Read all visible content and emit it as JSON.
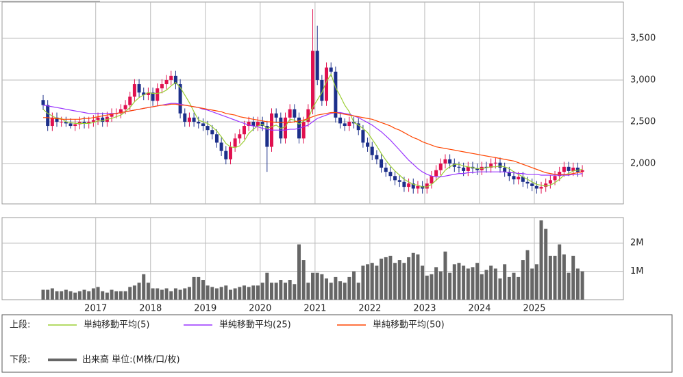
{
  "chart_data": [
    {
      "type": "candlestick",
      "open": [
        2760,
        2700,
        2450,
        2550,
        2500,
        2500,
        2480,
        2450,
        2470,
        2500,
        2480,
        2500,
        2520,
        2550,
        2500,
        2560,
        2600,
        2600,
        2650,
        2700,
        2800,
        2950,
        2850,
        2820,
        2850,
        2750,
        2900,
        2950,
        3000,
        3050,
        2950,
        2600,
        2500,
        2550,
        2500,
        2480,
        2450,
        2400,
        2350,
        2250,
        2150,
        2050,
        2200,
        2300,
        2350,
        2450,
        2500,
        2450,
        2500,
        2450,
        2200,
        2600,
        2550,
        2300,
        2550,
        2650,
        2550,
        2300,
        2500,
        2650,
        3350,
        3000,
        2750,
        3150,
        3100,
        2550,
        2480,
        2450,
        2500,
        2480,
        2400,
        2250,
        2200,
        2100,
        2050,
        1950,
        1900,
        1850,
        1800,
        1780,
        1720,
        1760,
        1700,
        1730,
        1700,
        1760,
        1850,
        1920,
        2000,
        2050,
        2000,
        1960,
        1950,
        1910,
        1960,
        1940,
        1920,
        1960,
        1950,
        2000,
        2010,
        1950,
        1900,
        1850,
        1810,
        1840,
        1780,
        1760,
        1730,
        1700,
        1720,
        1760,
        1800,
        1850,
        1900,
        1960,
        1910,
        1950,
        1900
      ],
      "high": [
        2820,
        2760,
        2610,
        2610,
        2560,
        2560,
        2540,
        2530,
        2560,
        2560,
        2560,
        2580,
        2610,
        2610,
        2620,
        2660,
        2660,
        2710,
        2760,
        2860,
        3010,
        3010,
        2910,
        2910,
        2910,
        2960,
        3010,
        3060,
        3110,
        3110,
        3010,
        2660,
        2610,
        2610,
        2560,
        2540,
        2510,
        2460,
        2410,
        2310,
        2210,
        2260,
        2360,
        2410,
        2510,
        2560,
        2560,
        2560,
        2560,
        2510,
        2660,
        2660,
        2610,
        2610,
        2710,
        2710,
        2610,
        2560,
        2710,
        3850,
        3650,
        3060,
        3210,
        3210,
        3160,
        2610,
        2540,
        2560,
        2560,
        2540,
        2460,
        2310,
        2260,
        2160,
        2110,
        2010,
        1960,
        1910,
        1860,
        1840,
        1820,
        1820,
        1790,
        1790,
        1820,
        1910,
        1980,
        2060,
        2110,
        2110,
        2060,
        2020,
        2010,
        2020,
        2020,
        2000,
        2020,
        2020,
        2060,
        2070,
        2070,
        2010,
        1960,
        1910,
        1900,
        1900,
        1840,
        1820,
        1790,
        1780,
        1820,
        1860,
        1910,
        1960,
        2020,
        2020,
        2010,
        2010,
        1980
      ],
      "low": [
        2640,
        2390,
        2390,
        2440,
        2440,
        2440,
        2420,
        2390,
        2410,
        2420,
        2420,
        2440,
        2460,
        2440,
        2440,
        2500,
        2540,
        2540,
        2590,
        2640,
        2740,
        2790,
        2760,
        2760,
        2690,
        2690,
        2840,
        2890,
        2940,
        2890,
        2540,
        2440,
        2440,
        2440,
        2420,
        2390,
        2340,
        2290,
        2190,
        2090,
        1990,
        1990,
        2140,
        2240,
        2290,
        2390,
        2390,
        2390,
        2390,
        1900,
        2140,
        2490,
        2240,
        2240,
        2490,
        2490,
        2240,
        2240,
        2440,
        2590,
        2940,
        2690,
        2690,
        3040,
        2490,
        2420,
        2390,
        2390,
        2420,
        2340,
        2190,
        2140,
        2040,
        1990,
        1890,
        1840,
        1790,
        1740,
        1720,
        1660,
        1660,
        1640,
        1640,
        1640,
        1640,
        1700,
        1790,
        1860,
        1940,
        1940,
        1900,
        1890,
        1850,
        1850,
        1880,
        1860,
        1860,
        1890,
        1890,
        1940,
        1890,
        1840,
        1790,
        1750,
        1750,
        1720,
        1700,
        1670,
        1640,
        1640,
        1660,
        1700,
        1740,
        1790,
        1840,
        1850,
        1850,
        1840,
        1840
      ],
      "close": [
        2700,
        2450,
        2550,
        2500,
        2500,
        2480,
        2450,
        2470,
        2500,
        2480,
        2500,
        2520,
        2550,
        2500,
        2560,
        2600,
        2600,
        2650,
        2700,
        2800,
        2950,
        2850,
        2820,
        2850,
        2750,
        2900,
        2950,
        3000,
        3050,
        2950,
        2600,
        2500,
        2550,
        2500,
        2480,
        2450,
        2400,
        2350,
        2250,
        2150,
        2050,
        2200,
        2300,
        2350,
        2450,
        2500,
        2450,
        2500,
        2450,
        2200,
        2600,
        2550,
        2300,
        2550,
        2650,
        2550,
        2300,
        2500,
        2650,
        3350,
        3000,
        2750,
        3150,
        3100,
        2550,
        2480,
        2450,
        2500,
        2480,
        2400,
        2250,
        2200,
        2100,
        2050,
        1950,
        1900,
        1850,
        1800,
        1780,
        1720,
        1760,
        1700,
        1730,
        1700,
        1760,
        1850,
        1920,
        2000,
        2050,
        2000,
        1960,
        1950,
        1910,
        1960,
        1940,
        1920,
        1960,
        1950,
        2000,
        2010,
        1950,
        1900,
        1850,
        1810,
        1840,
        1780,
        1760,
        1730,
        1700,
        1720,
        1760,
        1800,
        1850,
        1900,
        1960,
        1910,
        1950,
        1900,
        1920
      ],
      "up_color": "#e0104f",
      "down_color": "#1c2f8a",
      "series": [
        {
          "name": "単純移動平均(5)",
          "color": "#9acd32",
          "values": [
            2650,
            2600,
            2570,
            2540,
            2540,
            2500,
            2490,
            2480,
            2480,
            2480,
            2480,
            2490,
            2510,
            2510,
            2530,
            2540,
            2560,
            2580,
            2620,
            2670,
            2740,
            2790,
            2820,
            2850,
            2840,
            2840,
            2850,
            2880,
            2930,
            2970,
            2910,
            2820,
            2730,
            2620,
            2520,
            2500,
            2480,
            2440,
            2390,
            2320,
            2240,
            2200,
            2190,
            2210,
            2270,
            2360,
            2410,
            2450,
            2470,
            2420,
            2440,
            2460,
            2420,
            2440,
            2530,
            2520,
            2470,
            2510,
            2530,
            2670,
            2760,
            2850,
            2980,
            3070,
            2910,
            2810,
            2700,
            2620,
            2490,
            2460,
            2420,
            2370,
            2290,
            2210,
            2120,
            2040,
            1970,
            1910,
            1860,
            1810,
            1780,
            1750,
            1740,
            1720,
            1720,
            1750,
            1800,
            1850,
            1920,
            1960,
            1990,
            1990,
            1970,
            1960,
            1950,
            1940,
            1940,
            1950,
            1960,
            1960,
            1970,
            1960,
            1940,
            1900,
            1870,
            1840,
            1810,
            1780,
            1750,
            1740,
            1730,
            1740,
            1770,
            1810,
            1860,
            1880,
            1910,
            1920,
            1930
          ]
        },
        {
          "name": "単純移動平均(25)",
          "color": "#9933ff",
          "values": [
            2700,
            2690,
            2680,
            2670,
            2660,
            2650,
            2640,
            2630,
            2620,
            2610,
            2600,
            2600,
            2600,
            2600,
            2600,
            2600,
            2600,
            2610,
            2620,
            2630,
            2640,
            2650,
            2660,
            2670,
            2680,
            2690,
            2700,
            2710,
            2720,
            2720,
            2710,
            2700,
            2690,
            2680,
            2670,
            2650,
            2640,
            2620,
            2600,
            2580,
            2560,
            2540,
            2520,
            2500,
            2480,
            2460,
            2450,
            2440,
            2420,
            2410,
            2400,
            2400,
            2400,
            2400,
            2410,
            2410,
            2420,
            2440,
            2460,
            2500,
            2540,
            2560,
            2580,
            2600,
            2610,
            2610,
            2600,
            2590,
            2570,
            2550,
            2520,
            2490,
            2460,
            2420,
            2380,
            2330,
            2280,
            2220,
            2160,
            2100,
            2040,
            1990,
            1940,
            1900,
            1870,
            1850,
            1840,
            1840,
            1850,
            1860,
            1870,
            1880,
            1880,
            1890,
            1890,
            1900,
            1900,
            1900,
            1900,
            1900,
            1900,
            1900,
            1890,
            1890,
            1880,
            1880,
            1870,
            1870,
            1870,
            1860,
            1860,
            1860,
            1860,
            1860,
            1860,
            1860,
            1870,
            1870,
            1880
          ]
        },
        {
          "name": "単純移動平均(50)",
          "color": "#ff4500",
          "values": [
            2550,
            2550,
            2540,
            2540,
            2530,
            2530,
            2530,
            2530,
            2530,
            2540,
            2540,
            2550,
            2560,
            2570,
            2580,
            2590,
            2600,
            2610,
            2620,
            2630,
            2640,
            2650,
            2660,
            2670,
            2680,
            2690,
            2700,
            2700,
            2710,
            2710,
            2700,
            2700,
            2690,
            2680,
            2670,
            2660,
            2650,
            2640,
            2630,
            2620,
            2600,
            2590,
            2580,
            2560,
            2550,
            2540,
            2530,
            2520,
            2510,
            2500,
            2500,
            2490,
            2490,
            2490,
            2490,
            2500,
            2510,
            2520,
            2540,
            2560,
            2580,
            2590,
            2600,
            2610,
            2610,
            2600,
            2590,
            2580,
            2570,
            2560,
            2550,
            2540,
            2530,
            2510,
            2490,
            2470,
            2450,
            2420,
            2400,
            2370,
            2340,
            2310,
            2290,
            2260,
            2240,
            2220,
            2200,
            2190,
            2180,
            2170,
            2160,
            2150,
            2140,
            2130,
            2120,
            2110,
            2100,
            2090,
            2080,
            2070,
            2060,
            2050,
            2040,
            2030,
            2010,
            1990,
            1970,
            1950,
            1930,
            1910,
            1890,
            1880,
            1870,
            1870,
            1870,
            1870,
            1880,
            1890,
            1900
          ]
        }
      ],
      "ylim": [
        1516,
        3934
      ],
      "yticks": [
        {
          "value": 2000,
          "label": "2,000"
        },
        {
          "value": 2500,
          "label": "2,500"
        },
        {
          "value": 3000,
          "label": "3,000"
        },
        {
          "value": 3500,
          "label": "3,500"
        }
      ],
      "grid": true,
      "legend_label": "上段:"
    },
    {
      "type": "bar",
      "categories": [
        null,
        null,
        null,
        null,
        null,
        null,
        null,
        null,
        null,
        null,
        null,
        null,
        "2017",
        null,
        null,
        null,
        null,
        null,
        null,
        null,
        null,
        null,
        null,
        null,
        "2018",
        null,
        null,
        null,
        null,
        null,
        null,
        null,
        null,
        null,
        null,
        null,
        "2019",
        null,
        null,
        null,
        null,
        null,
        null,
        null,
        null,
        null,
        null,
        null,
        "2020",
        null,
        null,
        null,
        null,
        null,
        null,
        null,
        null,
        null,
        null,
        null,
        "2021",
        null,
        null,
        null,
        null,
        null,
        null,
        null,
        null,
        null,
        null,
        null,
        "2022",
        null,
        null,
        null,
        null,
        null,
        null,
        null,
        null,
        null,
        null,
        null,
        "2023",
        null,
        null,
        null,
        null,
        null,
        null,
        null,
        null,
        null,
        null,
        null,
        "2024",
        null,
        null,
        null,
        null,
        null,
        null,
        null,
        null,
        null,
        null,
        null,
        "2025",
        null,
        null,
        null,
        null,
        null,
        null,
        null,
        null,
        null,
        null
      ],
      "series": [
        {
          "name": "出来高 単位:(M株/口/枚)",
          "color": "#666666",
          "values": [
            0.35,
            0.35,
            0.4,
            0.3,
            0.3,
            0.35,
            0.3,
            0.25,
            0.3,
            0.35,
            0.3,
            0.4,
            0.45,
            0.3,
            0.25,
            0.35,
            0.3,
            0.3,
            0.3,
            0.45,
            0.5,
            0.6,
            0.9,
            0.6,
            0.4,
            0.4,
            0.35,
            0.4,
            0.3,
            0.4,
            0.35,
            0.4,
            0.45,
            0.8,
            0.8,
            0.7,
            0.5,
            0.45,
            0.4,
            0.45,
            0.5,
            0.35,
            0.4,
            0.45,
            0.5,
            0.45,
            0.5,
            0.5,
            0.6,
            0.95,
            0.6,
            0.6,
            0.7,
            0.6,
            0.7,
            0.55,
            1.95,
            1.4,
            0.6,
            0.95,
            0.95,
            0.9,
            0.75,
            0.6,
            0.8,
            0.65,
            0.6,
            0.8,
            1.0,
            0.6,
            1.2,
            1.25,
            1.3,
            1.2,
            1.45,
            1.5,
            1.55,
            1.3,
            1.4,
            1.3,
            1.5,
            1.65,
            1.6,
            1.2,
            0.85,
            0.9,
            1.15,
            1.0,
            1.7,
            0.95,
            1.25,
            1.3,
            1.2,
            1.1,
            1.15,
            1.3,
            0.9,
            1.05,
            1.2,
            1.1,
            0.75,
            1.25,
            0.8,
            0.95,
            0.8,
            1.4,
            1.75,
            1.1,
            1.25,
            2.8,
            2.5,
            1.55,
            1.55,
            1.95,
            1.6,
            0.95,
            1.55,
            1.1,
            1.0
          ]
        }
      ],
      "ylim": [
        0,
        2.9
      ],
      "yticks": [
        {
          "value": 1,
          "label": "1M"
        },
        {
          "value": 2,
          "label": "2M"
        }
      ],
      "grid": true,
      "legend_label": "下段:"
    }
  ]
}
